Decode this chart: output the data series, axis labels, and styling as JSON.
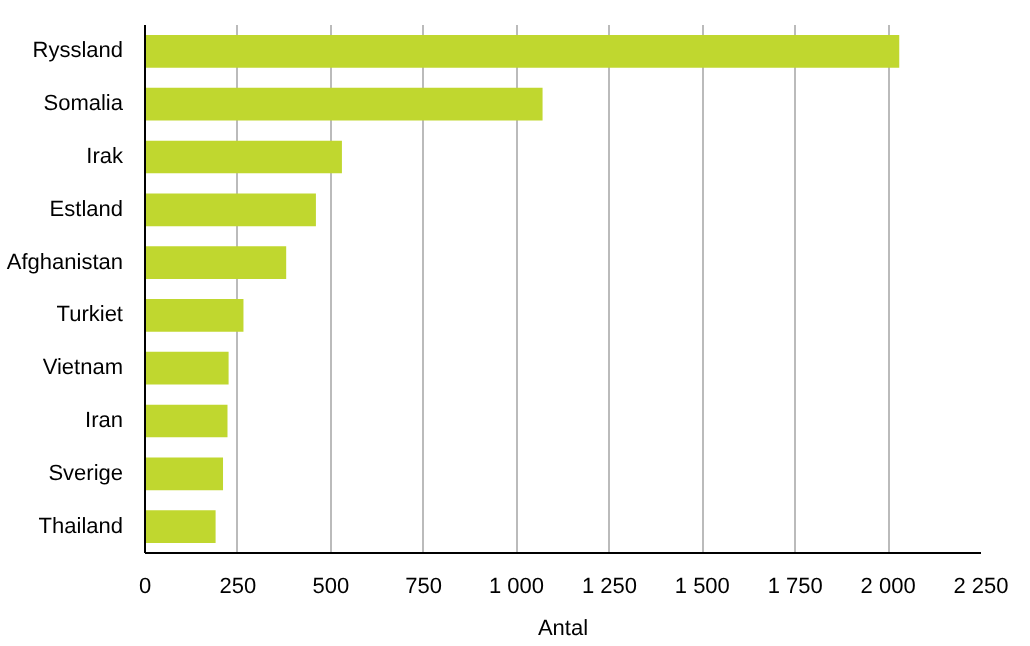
{
  "chart_data": {
    "type": "bar",
    "orientation": "horizontal",
    "xlabel": "Antal",
    "categories": [
      "Ryssland",
      "Somalia",
      "Irak",
      "Estland",
      "Afghanistan",
      "Turkiet",
      "Vietnam",
      "Iran",
      "Sverige",
      "Thailand"
    ],
    "values": [
      2030,
      1070,
      530,
      460,
      380,
      265,
      225,
      222,
      210,
      190
    ],
    "color": "#c0d72f",
    "xlim": [
      0,
      2250
    ],
    "xticks": [
      0,
      250,
      500,
      750,
      {
        "value": 1000,
        "label": "1 000"
      },
      {
        "value": 1250,
        "label": "1 250"
      },
      {
        "value": 1500,
        "label": "1 500"
      },
      {
        "value": 1750,
        "label": "1 750"
      },
      {
        "value": 2000,
        "label": "2 000"
      },
      {
        "value": 2250,
        "label": "2 250"
      }
    ],
    "grid": "x"
  }
}
